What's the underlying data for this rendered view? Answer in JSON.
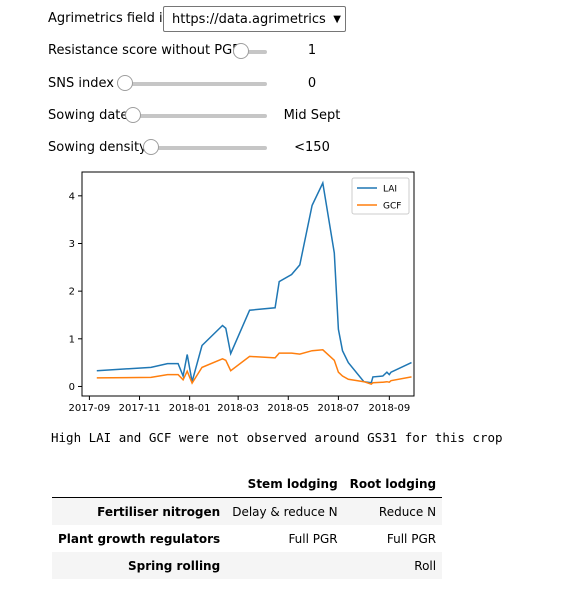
{
  "controls": {
    "field_id": {
      "label": "Agrimetrics field id",
      "value": "https://data.agrimetrics.co"
    },
    "resistance": {
      "label": "Resistance score without PGR",
      "value": "1",
      "level": 0
    },
    "sns": {
      "label": "SNS index",
      "value": "0",
      "level": 0
    },
    "sowing_date": {
      "label": "Sowing date",
      "value": "Mid Sept",
      "level": 0
    },
    "sowing_density": {
      "label": "Sowing density",
      "value": "<150",
      "level": 0
    }
  },
  "chart_data": {
    "type": "line",
    "x_ticks": [
      "2017-09",
      "2017-11",
      "2018-01",
      "2018-03",
      "2018-05",
      "2018-07",
      "2018-09"
    ],
    "y_ticks": [
      "0",
      "1",
      "2",
      "3",
      "4"
    ],
    "xlim": [
      "2017-08-23",
      "2018-10-01"
    ],
    "ylim": [
      -0.2,
      4.5
    ],
    "legend": "top-right",
    "series": [
      {
        "name": "LAI",
        "color": "#1f77b4",
        "x": [
          "2017-09-10",
          "2017-11-15",
          "2017-12-05",
          "2017-12-18",
          "2017-12-24",
          "2017-12-29",
          "2018-01-04",
          "2018-01-16",
          "2018-02-10",
          "2018-02-14",
          "2018-02-20",
          "2018-03-15",
          "2018-04-15",
          "2018-04-20",
          "2018-05-05",
          "2018-05-15",
          "2018-05-30",
          "2018-06-12",
          "2018-06-26",
          "2018-07-01",
          "2018-07-06",
          "2018-07-13",
          "2018-08-01",
          "2018-08-10",
          "2018-08-12",
          "2018-08-24",
          "2018-08-29",
          "2018-09-01",
          "2018-09-03",
          "2018-09-28"
        ],
        "y": [
          0.33,
          0.4,
          0.48,
          0.48,
          0.22,
          0.67,
          0.1,
          0.86,
          1.28,
          1.22,
          0.69,
          1.6,
          1.65,
          2.2,
          2.35,
          2.55,
          3.8,
          4.27,
          2.8,
          1.2,
          0.75,
          0.5,
          0.1,
          0.08,
          0.2,
          0.22,
          0.3,
          0.25,
          0.3,
          0.5
        ]
      },
      {
        "name": "GCF",
        "color": "#ff7f0e",
        "x": [
          "2017-09-10",
          "2017-11-15",
          "2017-12-05",
          "2017-12-18",
          "2017-12-24",
          "2017-12-29",
          "2018-01-04",
          "2018-01-16",
          "2018-02-10",
          "2018-02-14",
          "2018-02-20",
          "2018-03-15",
          "2018-04-15",
          "2018-04-20",
          "2018-05-05",
          "2018-05-15",
          "2018-05-30",
          "2018-06-12",
          "2018-06-26",
          "2018-07-01",
          "2018-07-06",
          "2018-07-13",
          "2018-08-01",
          "2018-08-10",
          "2018-08-12",
          "2018-08-24",
          "2018-08-29",
          "2018-09-01",
          "2018-09-03",
          "2018-09-28"
        ],
        "y": [
          0.18,
          0.19,
          0.25,
          0.25,
          0.14,
          0.32,
          0.07,
          0.4,
          0.58,
          0.55,
          0.33,
          0.63,
          0.6,
          0.7,
          0.7,
          0.68,
          0.75,
          0.77,
          0.55,
          0.3,
          0.22,
          0.15,
          0.1,
          0.05,
          0.08,
          0.09,
          0.1,
          0.09,
          0.12,
          0.2
        ]
      }
    ]
  },
  "message": "High LAI and GCF were not observed around GS31 for this crop",
  "table": {
    "columns": [
      "",
      "Stem lodging",
      "Root lodging"
    ],
    "rows": [
      {
        "label": "Fertiliser nitrogen",
        "stem": "Delay & reduce N",
        "root": "Reduce N"
      },
      {
        "label": "Plant growth regulators",
        "stem": "Full PGR",
        "root": "Full PGR"
      },
      {
        "label": "Spring rolling",
        "stem": "",
        "root": "Roll"
      }
    ]
  }
}
